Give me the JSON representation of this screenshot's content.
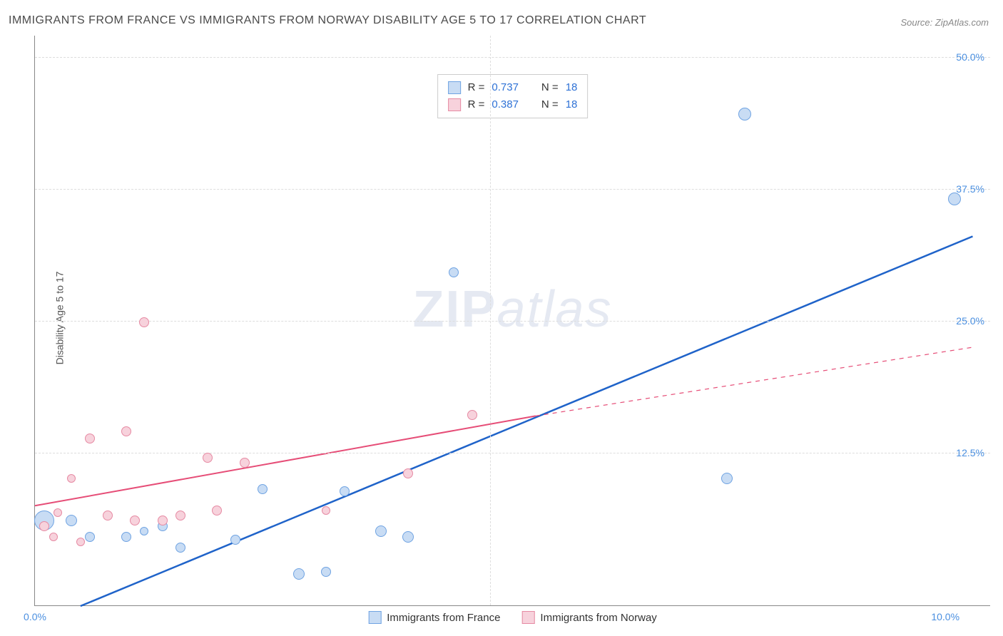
{
  "title": "IMMIGRANTS FROM FRANCE VS IMMIGRANTS FROM NORWAY DISABILITY AGE 5 TO 17 CORRELATION CHART",
  "source": "Source: ZipAtlas.com",
  "ylabel": "Disability Age 5 to 17",
  "watermark_bold": "ZIP",
  "watermark_italic": "atlas",
  "chart": {
    "type": "scatter",
    "xlim": [
      0,
      10.5
    ],
    "ylim": [
      -2,
      52
    ],
    "x_ticks": [
      0.0,
      10.0
    ],
    "x_tick_labels": [
      "0.0%",
      "10.0%"
    ],
    "y_ticks": [
      12.5,
      25.0,
      37.5,
      50.0
    ],
    "y_tick_labels": [
      "12.5%",
      "25.0%",
      "37.5%",
      "50.0%"
    ],
    "grid_color": "#dddddd",
    "background": "#ffffff",
    "series": [
      {
        "name": "Immigrants from France",
        "marker_fill": "#c8dcf4",
        "marker_stroke": "#6fa3e2",
        "line_color": "#1f63c9",
        "line_width": 2.5,
        "line_dash_extrap": false,
        "r_label": "R =",
        "r_value": "0.737",
        "n_label": "N =",
        "n_value": "18",
        "regression": {
          "x1": 0.5,
          "y1": -2.0,
          "x2": 10.3,
          "y2": 33.0
        },
        "points": [
          {
            "x": 0.1,
            "y": 6.0,
            "r": 14
          },
          {
            "x": 0.4,
            "y": 6.0,
            "r": 8
          },
          {
            "x": 0.6,
            "y": 4.5,
            "r": 7
          },
          {
            "x": 1.0,
            "y": 4.5,
            "r": 7
          },
          {
            "x": 1.4,
            "y": 5.5,
            "r": 7
          },
          {
            "x": 1.6,
            "y": 3.5,
            "r": 7
          },
          {
            "x": 1.2,
            "y": 5.0,
            "r": 6
          },
          {
            "x": 2.2,
            "y": 4.2,
            "r": 7
          },
          {
            "x": 2.5,
            "y": 9.0,
            "r": 7
          },
          {
            "x": 2.9,
            "y": 1.0,
            "r": 8
          },
          {
            "x": 3.2,
            "y": 1.2,
            "r": 7
          },
          {
            "x": 3.4,
            "y": 8.8,
            "r": 7
          },
          {
            "x": 3.8,
            "y": 5.0,
            "r": 8
          },
          {
            "x": 4.1,
            "y": 4.5,
            "r": 8
          },
          {
            "x": 4.6,
            "y": 29.5,
            "r": 7
          },
          {
            "x": 7.8,
            "y": 44.5,
            "r": 9
          },
          {
            "x": 7.6,
            "y": 10.0,
            "r": 8
          },
          {
            "x": 10.1,
            "y": 36.5,
            "r": 9
          }
        ]
      },
      {
        "name": "Immigrants from Norway",
        "marker_fill": "#f7d2dc",
        "marker_stroke": "#e68aa3",
        "line_color": "#e64d77",
        "line_width": 2,
        "line_dash_extrap": true,
        "r_label": "R =",
        "r_value": "0.387",
        "n_label": "N =",
        "n_value": "18",
        "regression_solid": {
          "x1": 0.0,
          "y1": 7.5,
          "x2": 5.5,
          "y2": 16.0
        },
        "regression_dash": {
          "x1": 5.5,
          "y1": 16.0,
          "x2": 10.3,
          "y2": 22.5
        },
        "points": [
          {
            "x": 0.1,
            "y": 5.5,
            "r": 7
          },
          {
            "x": 0.2,
            "y": 4.5,
            "r": 6
          },
          {
            "x": 0.25,
            "y": 6.8,
            "r": 6
          },
          {
            "x": 0.4,
            "y": 10.0,
            "r": 6
          },
          {
            "x": 0.5,
            "y": 4.0,
            "r": 6
          },
          {
            "x": 0.6,
            "y": 13.8,
            "r": 7
          },
          {
            "x": 0.8,
            "y": 6.5,
            "r": 7
          },
          {
            "x": 1.0,
            "y": 14.5,
            "r": 7
          },
          {
            "x": 1.1,
            "y": 6.0,
            "r": 7
          },
          {
            "x": 1.2,
            "y": 24.8,
            "r": 7
          },
          {
            "x": 1.4,
            "y": 6.0,
            "r": 7
          },
          {
            "x": 1.6,
            "y": 6.5,
            "r": 7
          },
          {
            "x": 1.9,
            "y": 12.0,
            "r": 7
          },
          {
            "x": 2.0,
            "y": 7.0,
            "r": 7
          },
          {
            "x": 2.3,
            "y": 11.5,
            "r": 7
          },
          {
            "x": 3.2,
            "y": 7.0,
            "r": 6
          },
          {
            "x": 4.1,
            "y": 10.5,
            "r": 7
          },
          {
            "x": 4.8,
            "y": 16.0,
            "r": 7
          }
        ]
      }
    ]
  },
  "legend_bottom": [
    "Immigrants from France",
    "Immigrants from Norway"
  ]
}
